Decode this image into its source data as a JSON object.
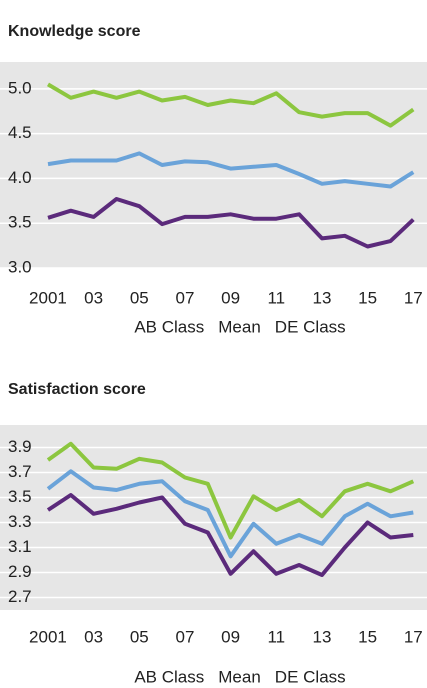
{
  "chart_data": [
    {
      "type": "line",
      "title": "Knowledge score",
      "x": [
        2001,
        2002,
        2003,
        2004,
        2005,
        2006,
        2007,
        2008,
        2009,
        2010,
        2011,
        2012,
        2013,
        2014,
        2015,
        2016,
        2017
      ],
      "xlim": [
        1998.9,
        2017.6
      ],
      "xticks": [
        {
          "value": 2001,
          "label": "2001"
        },
        {
          "value": 2003,
          "label": "03"
        },
        {
          "value": 2005,
          "label": "05"
        },
        {
          "value": 2007,
          "label": "07"
        },
        {
          "value": 2009,
          "label": "09"
        },
        {
          "value": 2011,
          "label": "11"
        },
        {
          "value": 2013,
          "label": "13"
        },
        {
          "value": 2015,
          "label": "15"
        },
        {
          "value": 2017,
          "label": "17"
        }
      ],
      "ylim": [
        3.0,
        5.3
      ],
      "yticks": [
        {
          "value": 3,
          "label": "3.0"
        },
        3.5,
        {
          "value": 4,
          "label": "4.0"
        },
        4.5,
        {
          "value": 5,
          "label": "5.0"
        }
      ],
      "grid": true,
      "series": [
        {
          "name": "AB Class",
          "color": "#8cc63f",
          "values": [
            5.05,
            4.9,
            4.97,
            4.9,
            4.97,
            4.87,
            4.91,
            4.82,
            4.87,
            4.84,
            4.95,
            4.74,
            4.69,
            4.73,
            4.73,
            4.59,
            4.77
          ]
        },
        {
          "name": "Mean",
          "color": "#6aa3d9",
          "values": [
            4.16,
            4.2,
            4.2,
            4.2,
            4.28,
            4.15,
            4.19,
            4.18,
            4.11,
            4.13,
            4.15,
            4.05,
            3.94,
            3.97,
            3.94,
            3.91,
            4.07
          ]
        },
        {
          "name": "DE Class",
          "color": "#5b2a7b",
          "values": [
            3.56,
            3.64,
            3.57,
            3.77,
            3.69,
            3.49,
            3.57,
            3.57,
            3.6,
            3.55,
            3.55,
            3.6,
            3.33,
            3.36,
            3.24,
            3.3,
            3.54
          ]
        }
      ]
    },
    {
      "type": "line",
      "title": "Satisfaction score",
      "x": [
        2001,
        2002,
        2003,
        2004,
        2005,
        2006,
        2007,
        2008,
        2009,
        2010,
        2011,
        2012,
        2013,
        2014,
        2015,
        2016,
        2017
      ],
      "xlim": [
        1998.9,
        2017.6
      ],
      "xticks": [
        {
          "value": 2001,
          "label": "2001"
        },
        {
          "value": 2003,
          "label": "03"
        },
        {
          "value": 2005,
          "label": "05"
        },
        {
          "value": 2007,
          "label": "07"
        },
        {
          "value": 2009,
          "label": "09"
        },
        {
          "value": 2011,
          "label": "11"
        },
        {
          "value": 2013,
          "label": "13"
        },
        {
          "value": 2015,
          "label": "15"
        },
        {
          "value": 2017,
          "label": "17"
        }
      ],
      "ylim": [
        2.6,
        4.08
      ],
      "yticks": [
        2.7,
        2.9,
        3.1,
        3.3,
        3.5,
        3.7,
        3.9
      ],
      "grid": true,
      "series": [
        {
          "name": "AB Class",
          "color": "#8cc63f",
          "values": [
            3.8,
            3.93,
            3.74,
            3.73,
            3.81,
            3.78,
            3.66,
            3.61,
            3.18,
            3.51,
            3.4,
            3.48,
            3.35,
            3.55,
            3.61,
            3.55,
            3.63
          ]
        },
        {
          "name": "Mean",
          "color": "#6aa3d9",
          "values": [
            3.57,
            3.71,
            3.58,
            3.56,
            3.61,
            3.63,
            3.47,
            3.4,
            3.03,
            3.29,
            3.13,
            3.2,
            3.13,
            3.35,
            3.45,
            3.35,
            3.38
          ]
        },
        {
          "name": "DE Class",
          "color": "#5b2a7b",
          "values": [
            3.4,
            3.52,
            3.37,
            3.41,
            3.46,
            3.5,
            3.29,
            3.22,
            2.89,
            3.07,
            2.89,
            2.96,
            2.88,
            3.1,
            3.3,
            3.18,
            3.2
          ]
        }
      ]
    }
  ]
}
